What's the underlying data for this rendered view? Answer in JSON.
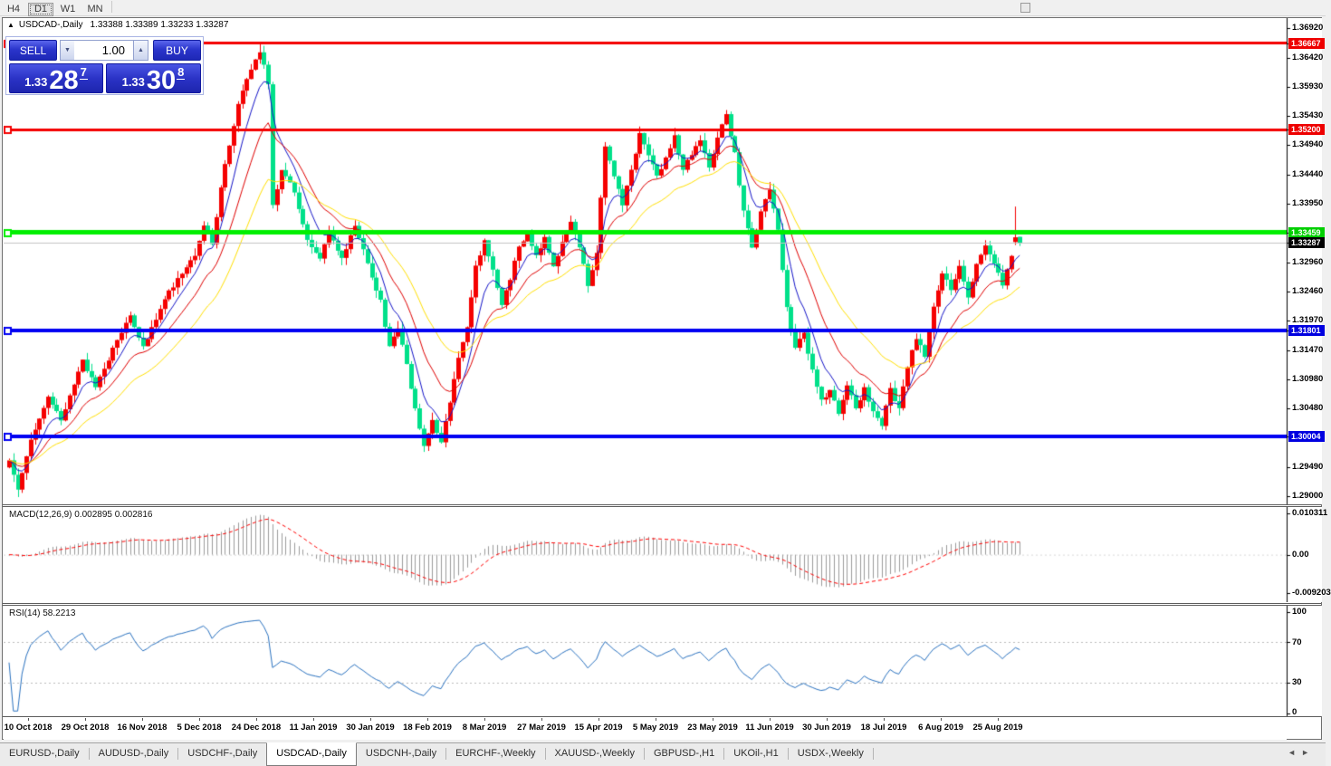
{
  "toolbar": {
    "timeframes": [
      {
        "label": "H4",
        "active": false
      },
      {
        "label": "D1",
        "active": true
      },
      {
        "label": "W1",
        "active": false
      },
      {
        "label": "MN",
        "active": false
      }
    ]
  },
  "chart": {
    "collapse_icon": "▲",
    "title_symbol": "USDCAD-,Daily",
    "title_ohlc": "1.33388 1.33389 1.33233 1.33287"
  },
  "trade_panel": {
    "sell_label": "SELL",
    "buy_label": "BUY",
    "volume": "1.00",
    "spin_down_icon": "▼",
    "spin_up_icon": "▲",
    "sell_price": {
      "small": "1.33",
      "big": "28",
      "sup": "7"
    },
    "buy_price": {
      "small": "1.33",
      "big": "30",
      "sup": "8"
    }
  },
  "price_axis": {
    "ticks": [
      {
        "label": "1.36920",
        "price": 1.3692
      },
      {
        "label": "1.36420",
        "price": 1.3642
      },
      {
        "label": "1.35930",
        "price": 1.3593
      },
      {
        "label": "1.35430",
        "price": 1.3543
      },
      {
        "label": "1.34940",
        "price": 1.3494
      },
      {
        "label": "1.34440",
        "price": 1.3444
      },
      {
        "label": "1.33950",
        "price": 1.3395
      },
      {
        "label": "1.32960",
        "price": 1.3296
      },
      {
        "label": "1.32460",
        "price": 1.3246
      },
      {
        "label": "1.31970",
        "price": 1.3197
      },
      {
        "label": "1.31470",
        "price": 1.3147
      },
      {
        "label": "1.30980",
        "price": 1.3098
      },
      {
        "label": "1.30480",
        "price": 1.3048
      },
      {
        "label": "1.29490",
        "price": 1.2949
      },
      {
        "label": "1.29000",
        "price": 1.29
      }
    ],
    "tags": [
      {
        "label": "1.36667",
        "price": 1.36667,
        "bg": "#ee0000"
      },
      {
        "label": "1.35200",
        "price": 1.352,
        "bg": "#ee0000"
      },
      {
        "label": "1.33459",
        "price": 1.33459,
        "bg": "#00cf00"
      },
      {
        "label": "1.33287",
        "price": 1.33287,
        "bg": "#000000"
      },
      {
        "label": "1.31801",
        "price": 1.31801,
        "bg": "#0000e0"
      },
      {
        "label": "1.30004",
        "price": 1.30004,
        "bg": "#0000e0"
      }
    ]
  },
  "macd_panel": {
    "label": "MACD(12,26,9) 0.002895 0.002816",
    "axis": [
      "0.010311",
      "0.00",
      "-0.009203"
    ]
  },
  "rsi_panel": {
    "label": "RSI(14) 58.2213",
    "axis": [
      "100",
      "70",
      "30",
      "0"
    ]
  },
  "date_axis": {
    "labels": [
      "10 Oct 2018",
      "29 Oct 2018",
      "16 Nov 2018",
      "5 Dec 2018",
      "24 Dec 2018",
      "11 Jan 2019",
      "30 Jan 2019",
      "18 Feb 2019",
      "8 Mar 2019",
      "27 Mar 2019",
      "15 Apr 2019",
      "5 May 2019",
      "23 May 2019",
      "11 Jun 2019",
      "30 Jun 2019",
      "18 Jul 2019",
      "6 Aug 2019",
      "25 Aug 2019"
    ]
  },
  "tabs": {
    "separator": "|",
    "nav_left": "◄",
    "nav_right": "►",
    "active_index": 3,
    "items": [
      {
        "label": "EURUSD-,Daily"
      },
      {
        "label": "AUDUSD-,Daily"
      },
      {
        "label": "USDCHF-,Daily"
      },
      {
        "label": "USDCAD-,Daily"
      },
      {
        "label": "USDCNH-,Daily"
      },
      {
        "label": "EURCHF-,Weekly"
      },
      {
        "label": "XAUUSD-,Weekly"
      },
      {
        "label": "GBPUSD-,H1"
      },
      {
        "label": "UKOil-,H1"
      },
      {
        "label": "USDX-,Weekly"
      }
    ]
  },
  "chart_data": {
    "type": "candlestick",
    "symbol": "USDCAD",
    "timeframe": "Daily",
    "price_axis_range": [
      1.29,
      1.3692
    ],
    "last_ohlc": {
      "open": 1.33388,
      "high": 1.33389,
      "low": 1.33233,
      "close": 1.33287
    },
    "bid": 1.33287,
    "ask": 1.33308,
    "candle_count": 235,
    "bull_color": "#f50000",
    "bear_color": "#00e08a",
    "close_path_anchors": [
      [
        0,
        1.296
      ],
      [
        2,
        1.2915
      ],
      [
        5,
        1.3
      ],
      [
        9,
        1.3065
      ],
      [
        12,
        1.303
      ],
      [
        17,
        1.313
      ],
      [
        20,
        1.3085
      ],
      [
        25,
        1.3165
      ],
      [
        28,
        1.321
      ],
      [
        31,
        1.315
      ],
      [
        36,
        1.3235
      ],
      [
        40,
        1.328
      ],
      [
        43,
        1.331
      ],
      [
        45,
        1.336
      ],
      [
        47,
        1.333
      ],
      [
        50,
        1.3465
      ],
      [
        53,
        1.356
      ],
      [
        56,
        1.3625
      ],
      [
        58,
        1.3655
      ],
      [
        60,
        1.36
      ],
      [
        61,
        1.3395
      ],
      [
        63,
        1.345
      ],
      [
        66,
        1.3415
      ],
      [
        69,
        1.333
      ],
      [
        72,
        1.33
      ],
      [
        74,
        1.3345
      ],
      [
        77,
        1.33
      ],
      [
        80,
        1.336
      ],
      [
        83,
        1.3295
      ],
      [
        86,
        1.323
      ],
      [
        88,
        1.315
      ],
      [
        90,
        1.3185
      ],
      [
        92,
        1.312
      ],
      [
        94,
        1.305
      ],
      [
        96,
        1.2985
      ],
      [
        98,
        1.303
      ],
      [
        100,
        1.299
      ],
      [
        102,
        1.306
      ],
      [
        104,
        1.313
      ],
      [
        106,
        1.319
      ],
      [
        108,
        1.329
      ],
      [
        110,
        1.333
      ],
      [
        112,
        1.328
      ],
      [
        114,
        1.322
      ],
      [
        116,
        1.327
      ],
      [
        118,
        1.332
      ],
      [
        120,
        1.335
      ],
      [
        122,
        1.3305
      ],
      [
        124,
        1.334
      ],
      [
        126,
        1.329
      ],
      [
        128,
        1.333
      ],
      [
        130,
        1.336
      ],
      [
        132,
        1.332
      ],
      [
        134,
        1.326
      ],
      [
        136,
        1.331
      ],
      [
        138,
        1.3495
      ],
      [
        140,
        1.344
      ],
      [
        142,
        1.3395
      ],
      [
        144,
        1.345
      ],
      [
        146,
        1.351
      ],
      [
        148,
        1.348
      ],
      [
        150,
        1.344
      ],
      [
        152,
        1.347
      ],
      [
        154,
        1.351
      ],
      [
        156,
        1.345
      ],
      [
        158,
        1.348
      ],
      [
        160,
        1.35
      ],
      [
        162,
        1.3455
      ],
      [
        164,
        1.351
      ],
      [
        166,
        1.3545
      ],
      [
        168,
        1.348
      ],
      [
        170,
        1.338
      ],
      [
        172,
        1.332
      ],
      [
        174,
        1.3385
      ],
      [
        176,
        1.3415
      ],
      [
        178,
        1.335
      ],
      [
        180,
        1.322
      ],
      [
        182,
        1.315
      ],
      [
        184,
        1.318
      ],
      [
        186,
        1.311
      ],
      [
        188,
        1.306
      ],
      [
        190,
        1.308
      ],
      [
        192,
        1.304
      ],
      [
        194,
        1.309
      ],
      [
        196,
        1.305
      ],
      [
        198,
        1.308
      ],
      [
        200,
        1.304
      ],
      [
        202,
        1.302
      ],
      [
        204,
        1.308
      ],
      [
        206,
        1.305
      ],
      [
        208,
        1.312
      ],
      [
        210,
        1.317
      ],
      [
        212,
        1.314
      ],
      [
        214,
        1.322
      ],
      [
        216,
        1.328
      ],
      [
        218,
        1.325
      ],
      [
        220,
        1.329
      ],
      [
        222,
        1.324
      ],
      [
        224,
        1.329
      ],
      [
        226,
        1.332
      ],
      [
        228,
        1.329
      ],
      [
        230,
        1.326
      ],
      [
        232,
        1.331
      ],
      [
        234,
        1.3329
      ]
    ],
    "moving_averages": [
      {
        "period": 7,
        "color": "#1414c8"
      },
      {
        "period": 15,
        "color": "#e00000"
      },
      {
        "period": 28,
        "color": "#ffe000"
      }
    ],
    "horizontal_levels": [
      {
        "price": 1.36667,
        "color": "#f40000",
        "width": 3
      },
      {
        "price": 1.352,
        "color": "#f40000",
        "width": 3
      },
      {
        "price": 1.33459,
        "color": "#00ef00",
        "width": 5
      },
      {
        "price": 1.31801,
        "color": "#0000f2",
        "width": 4
      },
      {
        "price": 1.30004,
        "color": "#0000f2",
        "width": 4
      }
    ],
    "current_price_line": {
      "price": 1.33287,
      "color": "#c4c4c4"
    },
    "macd": {
      "params": [
        12,
        26,
        9
      ],
      "current_macd": 0.002895,
      "current_signal": 0.002816,
      "axis_range": [
        -0.009203,
        0.010311
      ],
      "histogram_color": "#9c9c9c",
      "signal_color": "#ff0000"
    },
    "rsi": {
      "period": 14,
      "current": 58.2213,
      "levels": [
        30,
        70
      ],
      "axis_range": [
        0,
        100
      ],
      "line_color": "#2a72c0"
    }
  }
}
